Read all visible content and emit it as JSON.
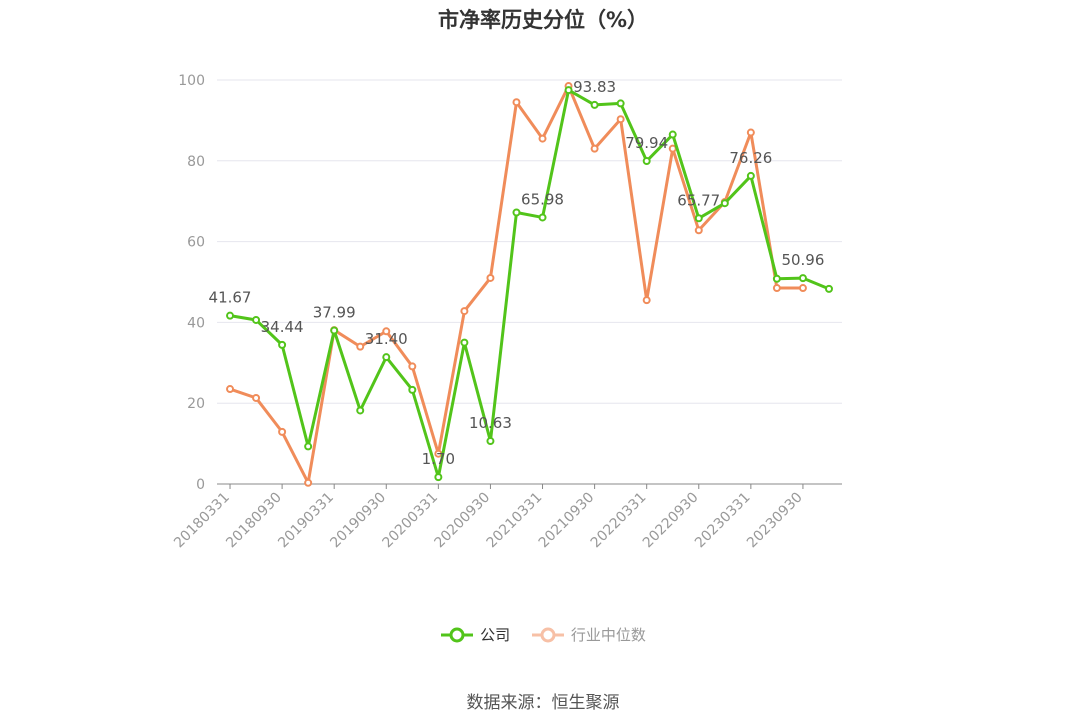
{
  "chart_data": {
    "type": "line",
    "title": "市净率历史分位（%）",
    "x": [
      "20180331",
      "20180630",
      "20180930",
      "20181231",
      "20190331",
      "20190630",
      "20190930",
      "20191231",
      "20200331",
      "20200630",
      "20200930",
      "20201231",
      "20210331",
      "20210630",
      "20210930",
      "20211231",
      "20220331",
      "20220630",
      "20220930",
      "20221231",
      "20230331",
      "20230630",
      "20230930",
      "20231231"
    ],
    "x_tick_labels": [
      "20180331",
      "20180930",
      "20190331",
      "20190930",
      "20200331",
      "20200930",
      "20210331",
      "20210930",
      "20220331",
      "20220930",
      "20230331",
      "20230930"
    ],
    "y_ticks": [
      0,
      20,
      40,
      60,
      80,
      100
    ],
    "ylim": [
      0,
      100
    ],
    "grid": true,
    "legend_position": "bottom",
    "series": [
      {
        "name": "公司",
        "color": "#52c41a",
        "values": [
          41.67,
          40.6,
          34.44,
          9.3,
          37.99,
          18.2,
          31.4,
          23.3,
          1.7,
          35.0,
          10.63,
          67.2,
          65.98,
          97.5,
          93.83,
          94.2,
          79.94,
          86.5,
          65.77,
          69.5,
          76.26,
          50.8,
          50.96,
          48.3
        ],
        "labels": [
          "41.67",
          null,
          "34.44",
          null,
          "37.99",
          null,
          "31.40",
          null,
          "1.70",
          null,
          "10.63",
          null,
          "65.98",
          null,
          "93.83",
          null,
          "79.94",
          null,
          "65.77",
          null,
          "76.26",
          null,
          "50.96",
          null
        ]
      },
      {
        "name": "行业中位数",
        "color": "#f08c5a",
        "values": [
          23.5,
          21.3,
          12.9,
          0.3,
          38.1,
          34.0,
          37.8,
          29.1,
          7.5,
          42.8,
          51.0,
          94.5,
          85.5,
          98.5,
          83.0,
          90.3,
          45.5,
          83.0,
          62.8,
          69.8,
          87.0,
          48.5,
          48.5,
          null
        ]
      }
    ]
  },
  "legend": {
    "company": "公司",
    "industry": "行业中位数"
  },
  "source": "数据来源：恒生聚源"
}
